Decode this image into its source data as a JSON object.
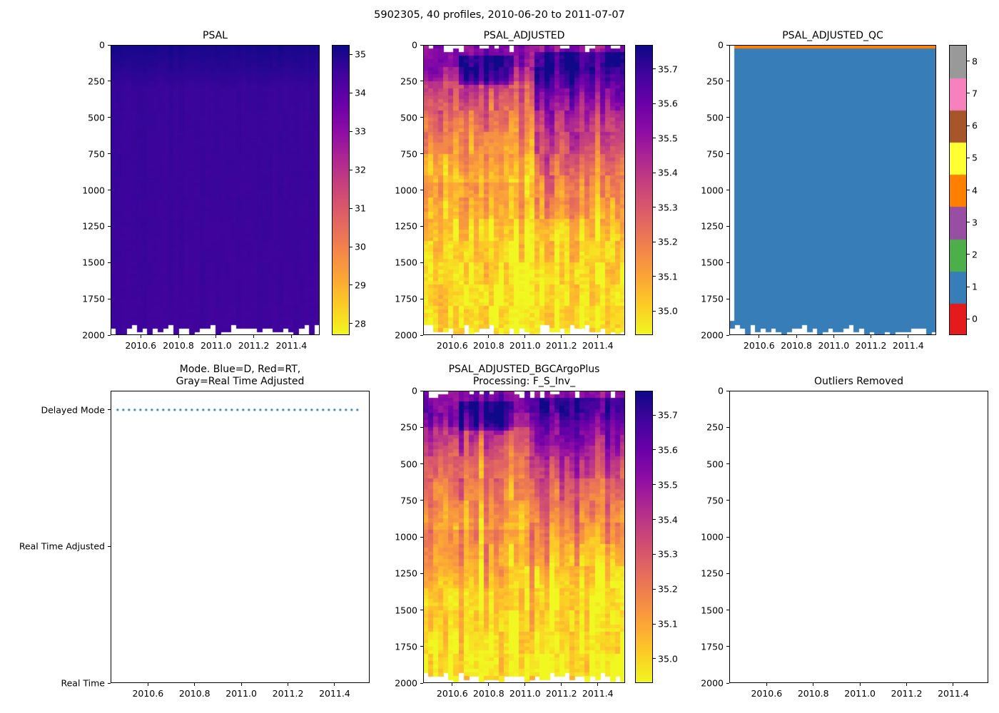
{
  "figure": {
    "suptitle": "5902305, 40 profiles, 2010-06-20 to 2011-07-07",
    "background": "#ffffff",
    "text_color": "#000000"
  },
  "colormaps": {
    "plasma": [
      [
        0,
        "#0d0887"
      ],
      [
        0.1,
        "#41049d"
      ],
      [
        0.2,
        "#6a00a8"
      ],
      [
        0.3,
        "#8f0da4"
      ],
      [
        0.4,
        "#b12a90"
      ],
      [
        0.5,
        "#cc4778"
      ],
      [
        0.6,
        "#e16462"
      ],
      [
        0.7,
        "#f2844b"
      ],
      [
        0.8,
        "#fca636"
      ],
      [
        0.9,
        "#fcce25"
      ],
      [
        1,
        "#f0f921"
      ]
    ],
    "set1": [
      "#e41a1c",
      "#377eb8",
      "#4daf4a",
      "#984ea3",
      "#ff7f00",
      "#ffff33",
      "#a65628",
      "#f781bf",
      "#999999"
    ]
  },
  "chart_data": [
    {
      "id": "psal",
      "type": "heatmap",
      "title": "PSAL",
      "x_range": [
        2010.44,
        2011.55
      ],
      "x_ticks": [
        2010.6,
        2010.8,
        2011.0,
        2011.2,
        2011.4
      ],
      "x_tick_labels": [
        "2010.6",
        "2010.8",
        "2011.0",
        "2011.2",
        "2011.4"
      ],
      "y_range": [
        0,
        2000
      ],
      "y_ticks": [
        0,
        250,
        500,
        750,
        1000,
        1250,
        1500,
        1750,
        2000
      ],
      "y_inverted": true,
      "n_profiles": 40,
      "n_levels": 80,
      "colormap": "plasma_r",
      "colorbar": {
        "vmin": 27.7,
        "vmax": 35.25,
        "ticks": [
          28,
          29,
          30,
          31,
          32,
          33,
          34,
          35
        ],
        "tick_labels": [
          "28",
          "29",
          "30",
          "31",
          "32",
          "33",
          "34",
          "35"
        ]
      },
      "value_profile": [
        [
          0,
          35.12
        ],
        [
          60,
          35.02
        ],
        [
          300,
          34.62
        ],
        [
          2000,
          34.52
        ]
      ],
      "noise": 0.03,
      "column_noise": 0.04,
      "streak_noise": 0.015,
      "features": [],
      "bottom_gap_depth": [
        1930,
        2005
      ],
      "seed": 7
    },
    {
      "id": "psal_adjusted",
      "type": "heatmap",
      "title": "PSAL_ADJUSTED",
      "x_range": [
        2010.44,
        2011.55
      ],
      "x_ticks": [
        2010.6,
        2010.8,
        2011.0,
        2011.2,
        2011.4
      ],
      "x_tick_labels": [
        "2010.6",
        "2010.8",
        "2011.0",
        "2011.2",
        "2011.4"
      ],
      "y_range": [
        0,
        2000
      ],
      "y_ticks": [
        0,
        250,
        500,
        750,
        1000,
        1250,
        1500,
        1750,
        2000
      ],
      "y_inverted": true,
      "n_profiles": 40,
      "n_levels": 80,
      "colormap": "plasma_r",
      "colorbar": {
        "vmin": 34.93,
        "vmax": 35.77,
        "ticks": [
          35.0,
          35.1,
          35.2,
          35.3,
          35.4,
          35.5,
          35.6,
          35.7
        ],
        "tick_labels": [
          "35.0",
          "35.1",
          "35.2",
          "35.3",
          "35.4",
          "35.5",
          "35.6",
          "35.7"
        ]
      },
      "value_profile": [
        [
          0,
          35.54
        ],
        [
          130,
          35.56
        ],
        [
          500,
          35.3
        ],
        [
          900,
          35.14
        ],
        [
          1350,
          35.0
        ],
        [
          2000,
          34.96
        ]
      ],
      "noise": 0.07,
      "column_noise": 0.05,
      "streak_noise": 0.09,
      "features": [
        {
          "x": [
            0.18,
            0.45
          ],
          "depth": [
            70,
            270
          ],
          "delta": 0.17
        },
        {
          "x": [
            0.55,
            1.0
          ],
          "depth": [
            60,
            1350
          ],
          "delta": 0.16,
          "fade": true
        },
        {
          "x": [
            0.0,
            0.55
          ],
          "depth": [
            260,
            950
          ],
          "delta": -0.07
        }
      ],
      "top_gap": {
        "probability": 0.3,
        "max_depth": 45
      },
      "bottom_gap_depth": [
        1930,
        2005
      ],
      "seed": 23
    },
    {
      "id": "psal_adjusted_qc",
      "type": "qc_heatmap",
      "title": "PSAL_ADJUSTED_QC",
      "x_range": [
        2010.44,
        2011.55
      ],
      "x_ticks": [
        2010.6,
        2010.8,
        2011.0,
        2011.2,
        2011.4
      ],
      "x_tick_labels": [
        "2010.6",
        "2010.8",
        "2011.0",
        "2011.2",
        "2011.4"
      ],
      "y_range": [
        0,
        2000
      ],
      "y_ticks": [
        0,
        250,
        500,
        750,
        1000,
        1250,
        1500,
        1750,
        2000
      ],
      "y_inverted": true,
      "n_profiles": 40,
      "n_levels": 80,
      "qc_bands": [
        {
          "depth": [
            0,
            25
          ],
          "value": 4
        },
        {
          "depth": [
            25,
            2000
          ],
          "value": 1
        }
      ],
      "missing": [
        {
          "col": 0,
          "depth": [
            0,
            1900
          ]
        }
      ],
      "colorbar": {
        "discrete": true,
        "palette": "set1",
        "ticks": [
          0,
          1,
          2,
          3,
          4,
          5,
          6,
          7,
          8
        ],
        "tick_labels": [
          "0",
          "1",
          "2",
          "3",
          "4",
          "5",
          "6",
          "7",
          "8"
        ]
      },
      "bottom_gap_depth": [
        1930,
        2005
      ],
      "seed": 51
    },
    {
      "id": "mode",
      "type": "line",
      "title": "Mode. Blue=D, Red=RT,\nGray=Real Time Adjusted",
      "x_range": [
        2010.44,
        2011.55
      ],
      "x_ticks": [
        2010.6,
        2010.8,
        2011.0,
        2011.2,
        2011.4
      ],
      "x_tick_labels": [
        "2010.6",
        "2010.8",
        "2011.0",
        "2011.2",
        "2011.4"
      ],
      "y_categories": [
        "Delayed Mode",
        "Real Time Adjusted",
        "Real Time"
      ],
      "series": [
        {
          "name": "mode",
          "color": "#1f77b4",
          "linestyle": "dotted",
          "y_category": "Delayed Mode",
          "x_start": 2010.47,
          "x_end": 2011.51
        }
      ]
    },
    {
      "id": "psal_bgc",
      "type": "heatmap",
      "title": "PSAL_ADJUSTED_BGCArgoPlus\nProcessing: F_S_Inv_",
      "x_range": [
        2010.44,
        2011.55
      ],
      "x_ticks": [
        2010.6,
        2010.8,
        2011.0,
        2011.2,
        2011.4
      ],
      "x_tick_labels": [
        "2010.6",
        "2010.8",
        "2011.0",
        "2011.2",
        "2011.4"
      ],
      "y_range": [
        0,
        2000
      ],
      "y_ticks": [
        0,
        250,
        500,
        750,
        1000,
        1250,
        1500,
        1750,
        2000
      ],
      "y_inverted": true,
      "n_profiles": 40,
      "n_levels": 80,
      "colormap": "plasma_r",
      "colorbar": {
        "vmin": 34.93,
        "vmax": 35.77,
        "ticks": [
          35.0,
          35.1,
          35.2,
          35.3,
          35.4,
          35.5,
          35.6,
          35.7
        ],
        "tick_labels": [
          "35.0",
          "35.1",
          "35.2",
          "35.3",
          "35.4",
          "35.5",
          "35.6",
          "35.7"
        ]
      },
      "value_profile": [
        [
          0,
          35.54
        ],
        [
          130,
          35.56
        ],
        [
          500,
          35.3
        ],
        [
          900,
          35.14
        ],
        [
          1350,
          35.0
        ],
        [
          2000,
          34.96
        ]
      ],
      "noise": 0.07,
      "column_noise": 0.05,
      "streak_noise": 0.09,
      "features": [
        {
          "x": [
            0.18,
            0.45
          ],
          "depth": [
            70,
            270
          ],
          "delta": 0.17
        },
        {
          "x": [
            0.55,
            1.0
          ],
          "depth": [
            60,
            1350
          ],
          "delta": 0.16,
          "fade": true
        },
        {
          "x": [
            0.0,
            0.55
          ],
          "depth": [
            260,
            950
          ],
          "delta": -0.07
        }
      ],
      "top_gap": {
        "probability": 0.3,
        "max_depth": 45
      },
      "bottom_gap_depth": [
        1930,
        2005
      ],
      "seed": 37
    },
    {
      "id": "outliers",
      "type": "empty",
      "title": "Outliers Removed",
      "x_range": [
        2010.44,
        2011.55
      ],
      "x_ticks": [
        2010.6,
        2010.8,
        2011.0,
        2011.2,
        2011.4
      ],
      "x_tick_labels": [
        "2010.6",
        "2010.8",
        "2011.0",
        "2011.2",
        "2011.4"
      ],
      "y_range": [
        0,
        2000
      ],
      "y_ticks": [
        0,
        250,
        500,
        750,
        1000,
        1250,
        1500,
        1750,
        2000
      ],
      "y_inverted": true
    }
  ]
}
